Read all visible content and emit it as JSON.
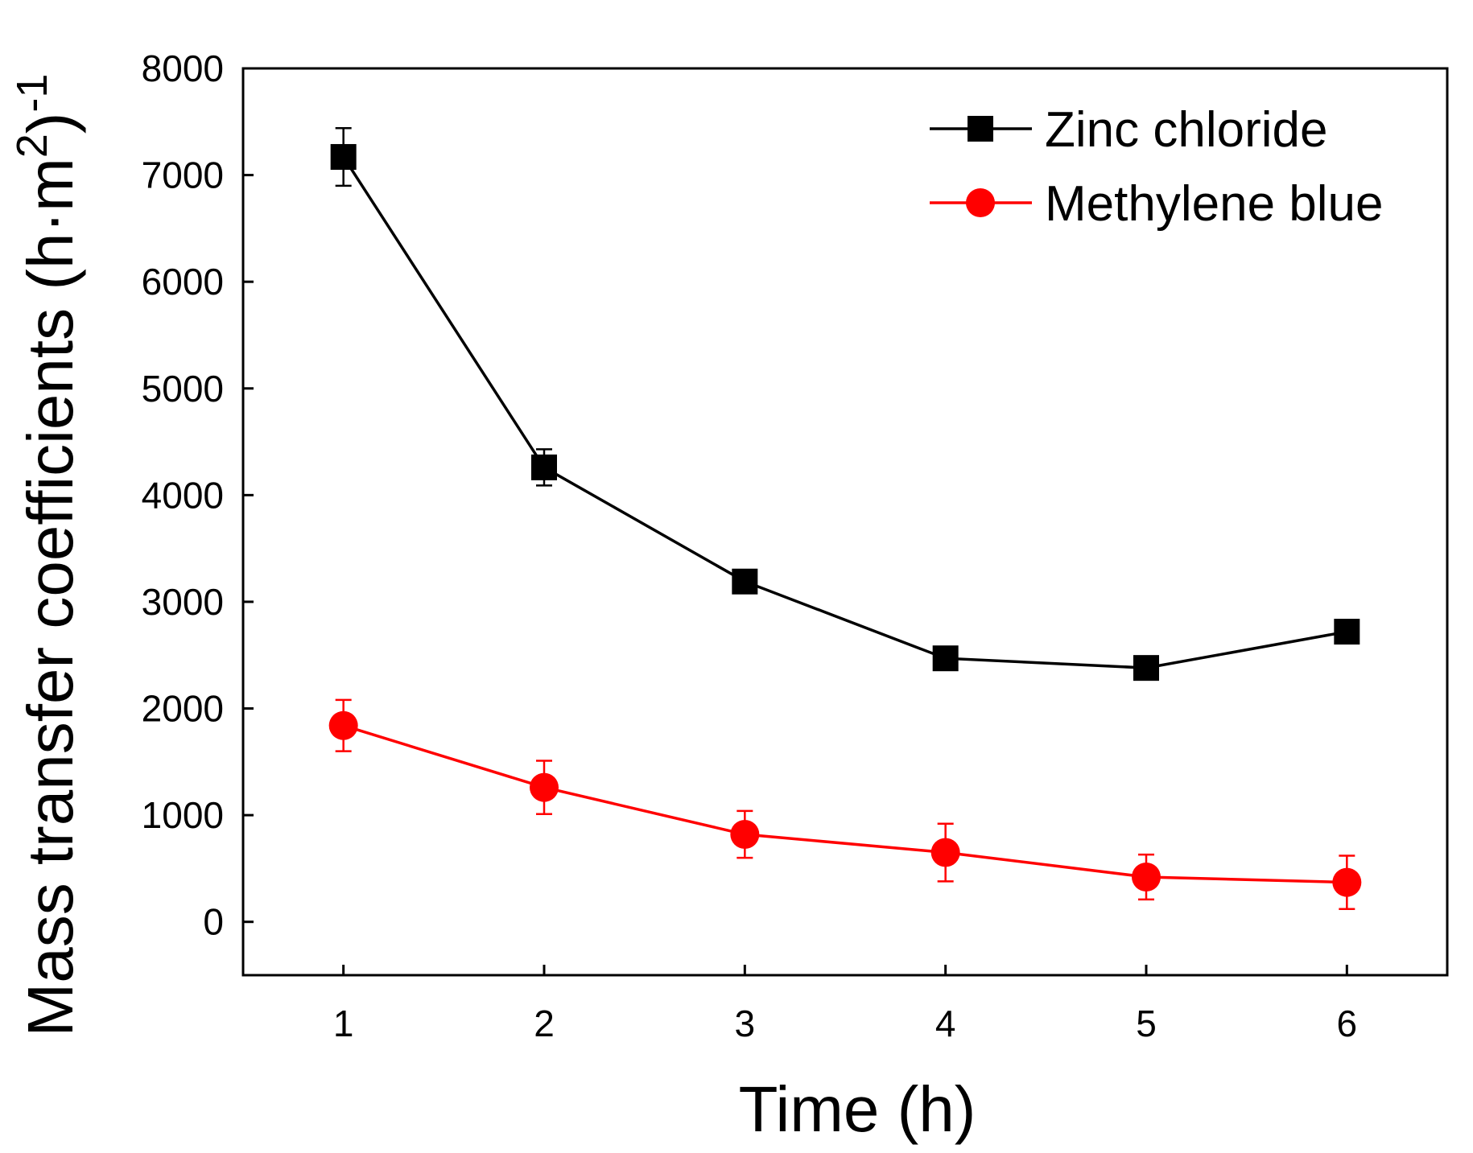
{
  "chart_data": {
    "type": "line",
    "title": "",
    "xlabel": "Time (h)",
    "ylabel": {
      "main": "Mass transfer coefficients (h·m",
      "sup1": "2",
      "close": ")",
      "sup2": "-1"
    },
    "xlim": [
      0.5,
      6.5
    ],
    "ylim": [
      -500,
      8000
    ],
    "x_ticks": [
      1,
      2,
      3,
      4,
      5,
      6
    ],
    "y_ticks": [
      0,
      1000,
      2000,
      3000,
      4000,
      5000,
      6000,
      7000,
      8000
    ],
    "grid": false,
    "legend_position": "top-right",
    "series": [
      {
        "name": "Zinc chloride",
        "color": "#000000",
        "marker": "square",
        "x": [
          1,
          2,
          3,
          4,
          5,
          6
        ],
        "y": [
          7170,
          4260,
          3190,
          2470,
          2380,
          2720
        ],
        "error": [
          270,
          170,
          0,
          0,
          0,
          0
        ]
      },
      {
        "name": "Methylene blue",
        "color": "#ff0000",
        "marker": "circle",
        "x": [
          1,
          2,
          3,
          4,
          5,
          6
        ],
        "y": [
          1840,
          1260,
          820,
          650,
          420,
          370
        ],
        "error": [
          240,
          250,
          220,
          270,
          210,
          250
        ]
      }
    ]
  }
}
